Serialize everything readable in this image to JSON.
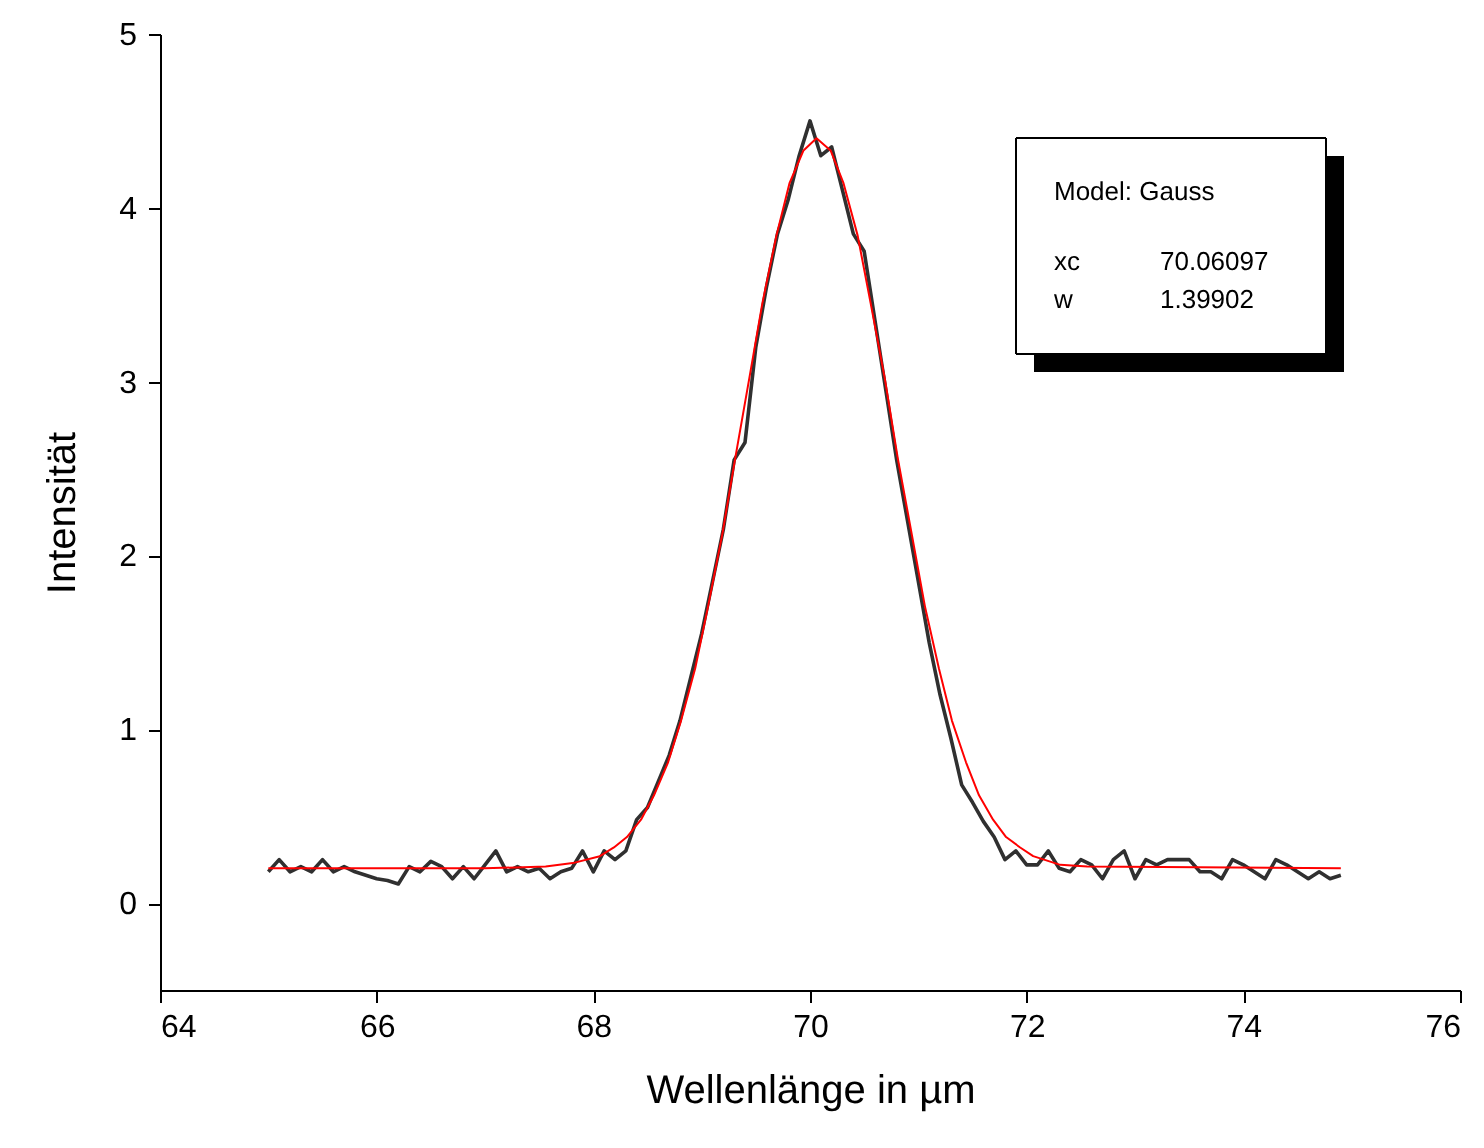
{
  "chart_data": {
    "type": "line",
    "xlabel": "Wellenlänge in µm",
    "ylabel": "Intensität",
    "xlim": [
      64,
      76
    ],
    "xticks": [
      64,
      66,
      68,
      70,
      72,
      74,
      76
    ],
    "ylim": [
      -0.5,
      5
    ],
    "yticks": [
      0,
      1,
      2,
      3,
      4,
      5
    ],
    "grid": false,
    "marker": "none",
    "line_style": "solid",
    "annotations": [
      "Model: Gauss",
      "xc",
      "70.06097",
      "w",
      "1.39902"
    ],
    "series": [
      {
        "color": "#303030",
        "x": [
          65.0,
          65.1,
          65.2,
          65.3,
          65.4,
          65.5,
          65.6,
          65.7,
          65.8,
          65.9,
          66.0,
          66.1,
          66.2,
          66.3,
          66.4,
          66.5,
          66.6,
          66.7,
          66.8,
          66.9,
          67.0,
          67.1,
          67.2,
          67.3,
          67.4,
          67.5,
          67.6,
          67.7,
          67.8,
          67.9,
          68.0,
          68.1,
          68.2,
          68.3,
          68.4,
          68.5,
          68.6,
          68.7,
          68.8,
          68.9,
          69.0,
          69.1,
          69.2,
          69.3,
          69.4,
          69.5,
          69.6,
          69.7,
          69.8,
          69.9,
          70.0,
          70.1,
          70.2,
          70.3,
          70.4,
          70.5,
          70.6,
          70.7,
          70.8,
          70.9,
          71.0,
          71.1,
          71.2,
          71.3,
          71.4,
          71.5,
          71.6,
          71.7,
          71.8,
          71.9,
          72.0,
          72.1,
          72.2,
          72.3,
          72.4,
          72.5,
          72.6,
          72.7,
          72.8,
          72.9,
          73.0,
          73.1,
          73.2,
          73.3,
          73.4,
          73.5,
          73.6,
          73.7,
          73.8,
          73.9,
          74.0,
          74.1,
          74.2,
          74.3,
          74.4,
          74.5,
          74.6,
          74.7,
          74.8,
          74.9
        ],
        "values": [
          0.18,
          0.25,
          0.18,
          0.21,
          0.18,
          0.25,
          0.18,
          0.21,
          0.18,
          0.16,
          0.14,
          0.13,
          0.11,
          0.21,
          0.18,
          0.24,
          0.21,
          0.14,
          0.21,
          0.14,
          0.22,
          0.3,
          0.18,
          0.21,
          0.18,
          0.2,
          0.14,
          0.18,
          0.2,
          0.3,
          0.18,
          0.3,
          0.25,
          0.3,
          0.48,
          0.55,
          0.7,
          0.85,
          1.05,
          1.3,
          1.55,
          1.85,
          2.15,
          2.55,
          2.65,
          3.2,
          3.55,
          3.85,
          4.05,
          4.3,
          4.5,
          4.3,
          4.35,
          4.1,
          3.85,
          3.75,
          3.35,
          2.95,
          2.55,
          2.2,
          1.85,
          1.5,
          1.2,
          0.95,
          0.68,
          0.58,
          0.47,
          0.38,
          0.25,
          0.3,
          0.22,
          0.22,
          0.3,
          0.2,
          0.18,
          0.25,
          0.22,
          0.14,
          0.25,
          0.3,
          0.14,
          0.25,
          0.22,
          0.25,
          0.25,
          0.25,
          0.18,
          0.18,
          0.14,
          0.25,
          0.22,
          0.18,
          0.14,
          0.25,
          0.22,
          0.18,
          0.14,
          0.18,
          0.14,
          0.16
        ]
      },
      {
        "color": "#ff0000",
        "x": [
          65.0,
          67.0,
          67.56,
          67.81,
          68.06,
          68.19,
          68.31,
          68.44,
          68.56,
          68.69,
          68.81,
          68.94,
          69.06,
          69.19,
          69.31,
          69.44,
          69.56,
          69.69,
          69.81,
          69.94,
          70.06,
          70.19,
          70.31,
          70.44,
          70.56,
          70.69,
          70.81,
          70.94,
          71.06,
          71.19,
          71.31,
          71.44,
          71.56,
          71.69,
          71.81,
          71.94,
          72.06,
          72.31,
          72.56,
          74.9
        ],
        "values": [
          0.2,
          0.2,
          0.21,
          0.23,
          0.27,
          0.32,
          0.38,
          0.48,
          0.62,
          0.81,
          1.05,
          1.35,
          1.71,
          2.12,
          2.56,
          3.02,
          3.45,
          3.84,
          4.14,
          4.33,
          4.4,
          4.33,
          4.14,
          3.84,
          3.45,
          3.02,
          2.56,
          2.12,
          1.71,
          1.35,
          1.05,
          0.81,
          0.62,
          0.48,
          0.38,
          0.32,
          0.27,
          0.22,
          0.21,
          0.2
        ]
      }
    ]
  }
}
